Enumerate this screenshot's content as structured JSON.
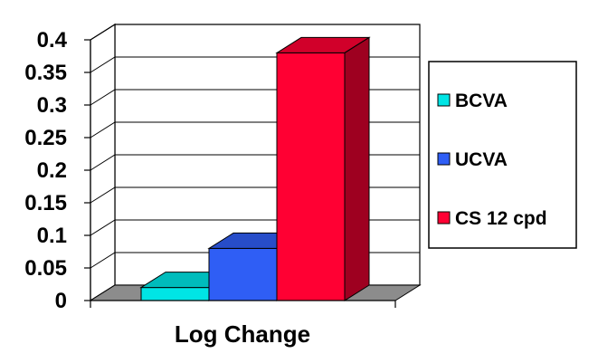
{
  "chart_data": {
    "type": "bar",
    "title": "",
    "xlabel": "",
    "ylabel": "",
    "categories": [
      "Log Change"
    ],
    "series": [
      {
        "name": "BCVA",
        "values": [
          0.02
        ],
        "color": "#00e5e5"
      },
      {
        "name": "UCVA",
        "values": [
          0.08
        ],
        "color": "#2f5ef5"
      },
      {
        "name": "CS 12 cpd",
        "values": [
          0.38
        ],
        "color": "#ff0033"
      }
    ],
    "ylim": [
      0,
      0.4
    ],
    "yticks": [
      "0",
      "0.05",
      "0.1",
      "0.15",
      "0.2",
      "0.25",
      "0.3",
      "0.35",
      "0.4"
    ],
    "grid": true,
    "legend": "right",
    "style": "3d-column"
  }
}
